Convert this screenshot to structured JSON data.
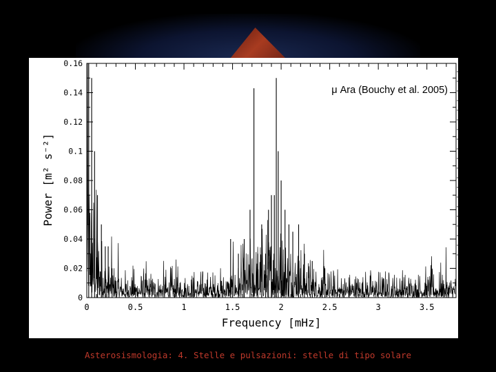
{
  "footer_text": "Asterosismologia: 4. Stelle e pulsazioni: stelle di tipo solare",
  "colors": {
    "background": "#000000",
    "panel": "#ffffff",
    "footer": "#c0392b",
    "trace": "#000000"
  },
  "chart_data": {
    "type": "line",
    "title": "μ Ara (Bouchy et al. 2005)",
    "xlabel": "Frequency  [mHz]",
    "ylabel": "Power  [m² s⁻²]",
    "xlim": [
      0,
      3.8
    ],
    "ylim": [
      0,
      0.16
    ],
    "xticks": [
      "0",
      "0.5",
      "1",
      "1.5",
      "2",
      "2.5",
      "3",
      "3.5"
    ],
    "yticks": [
      "0",
      "0.02",
      "0.04",
      "0.06",
      "0.08",
      "0.1",
      "0.12",
      "0.14",
      "0.16"
    ],
    "grid": false,
    "peaks": {
      "x": [
        0.02,
        0.05,
        0.08,
        0.11,
        0.15,
        0.19,
        0.22,
        0.26,
        1.48,
        1.56,
        1.62,
        1.68,
        1.72,
        1.76,
        1.8,
        1.84,
        1.87,
        1.9,
        1.93,
        1.95,
        1.97,
        2.0,
        2.04,
        2.08,
        2.12,
        2.18,
        2.24,
        2.32,
        2.45
      ],
      "y": [
        0.16,
        0.15,
        0.1,
        0.07,
        0.05,
        0.035,
        0.035,
        0.02,
        0.04,
        0.03,
        0.04,
        0.06,
        0.143,
        0.03,
        0.05,
        0.03,
        0.06,
        0.07,
        0.07,
        0.15,
        0.1,
        0.08,
        0.06,
        0.05,
        0.045,
        0.05,
        0.03,
        0.025,
        0.02
      ]
    }
  }
}
